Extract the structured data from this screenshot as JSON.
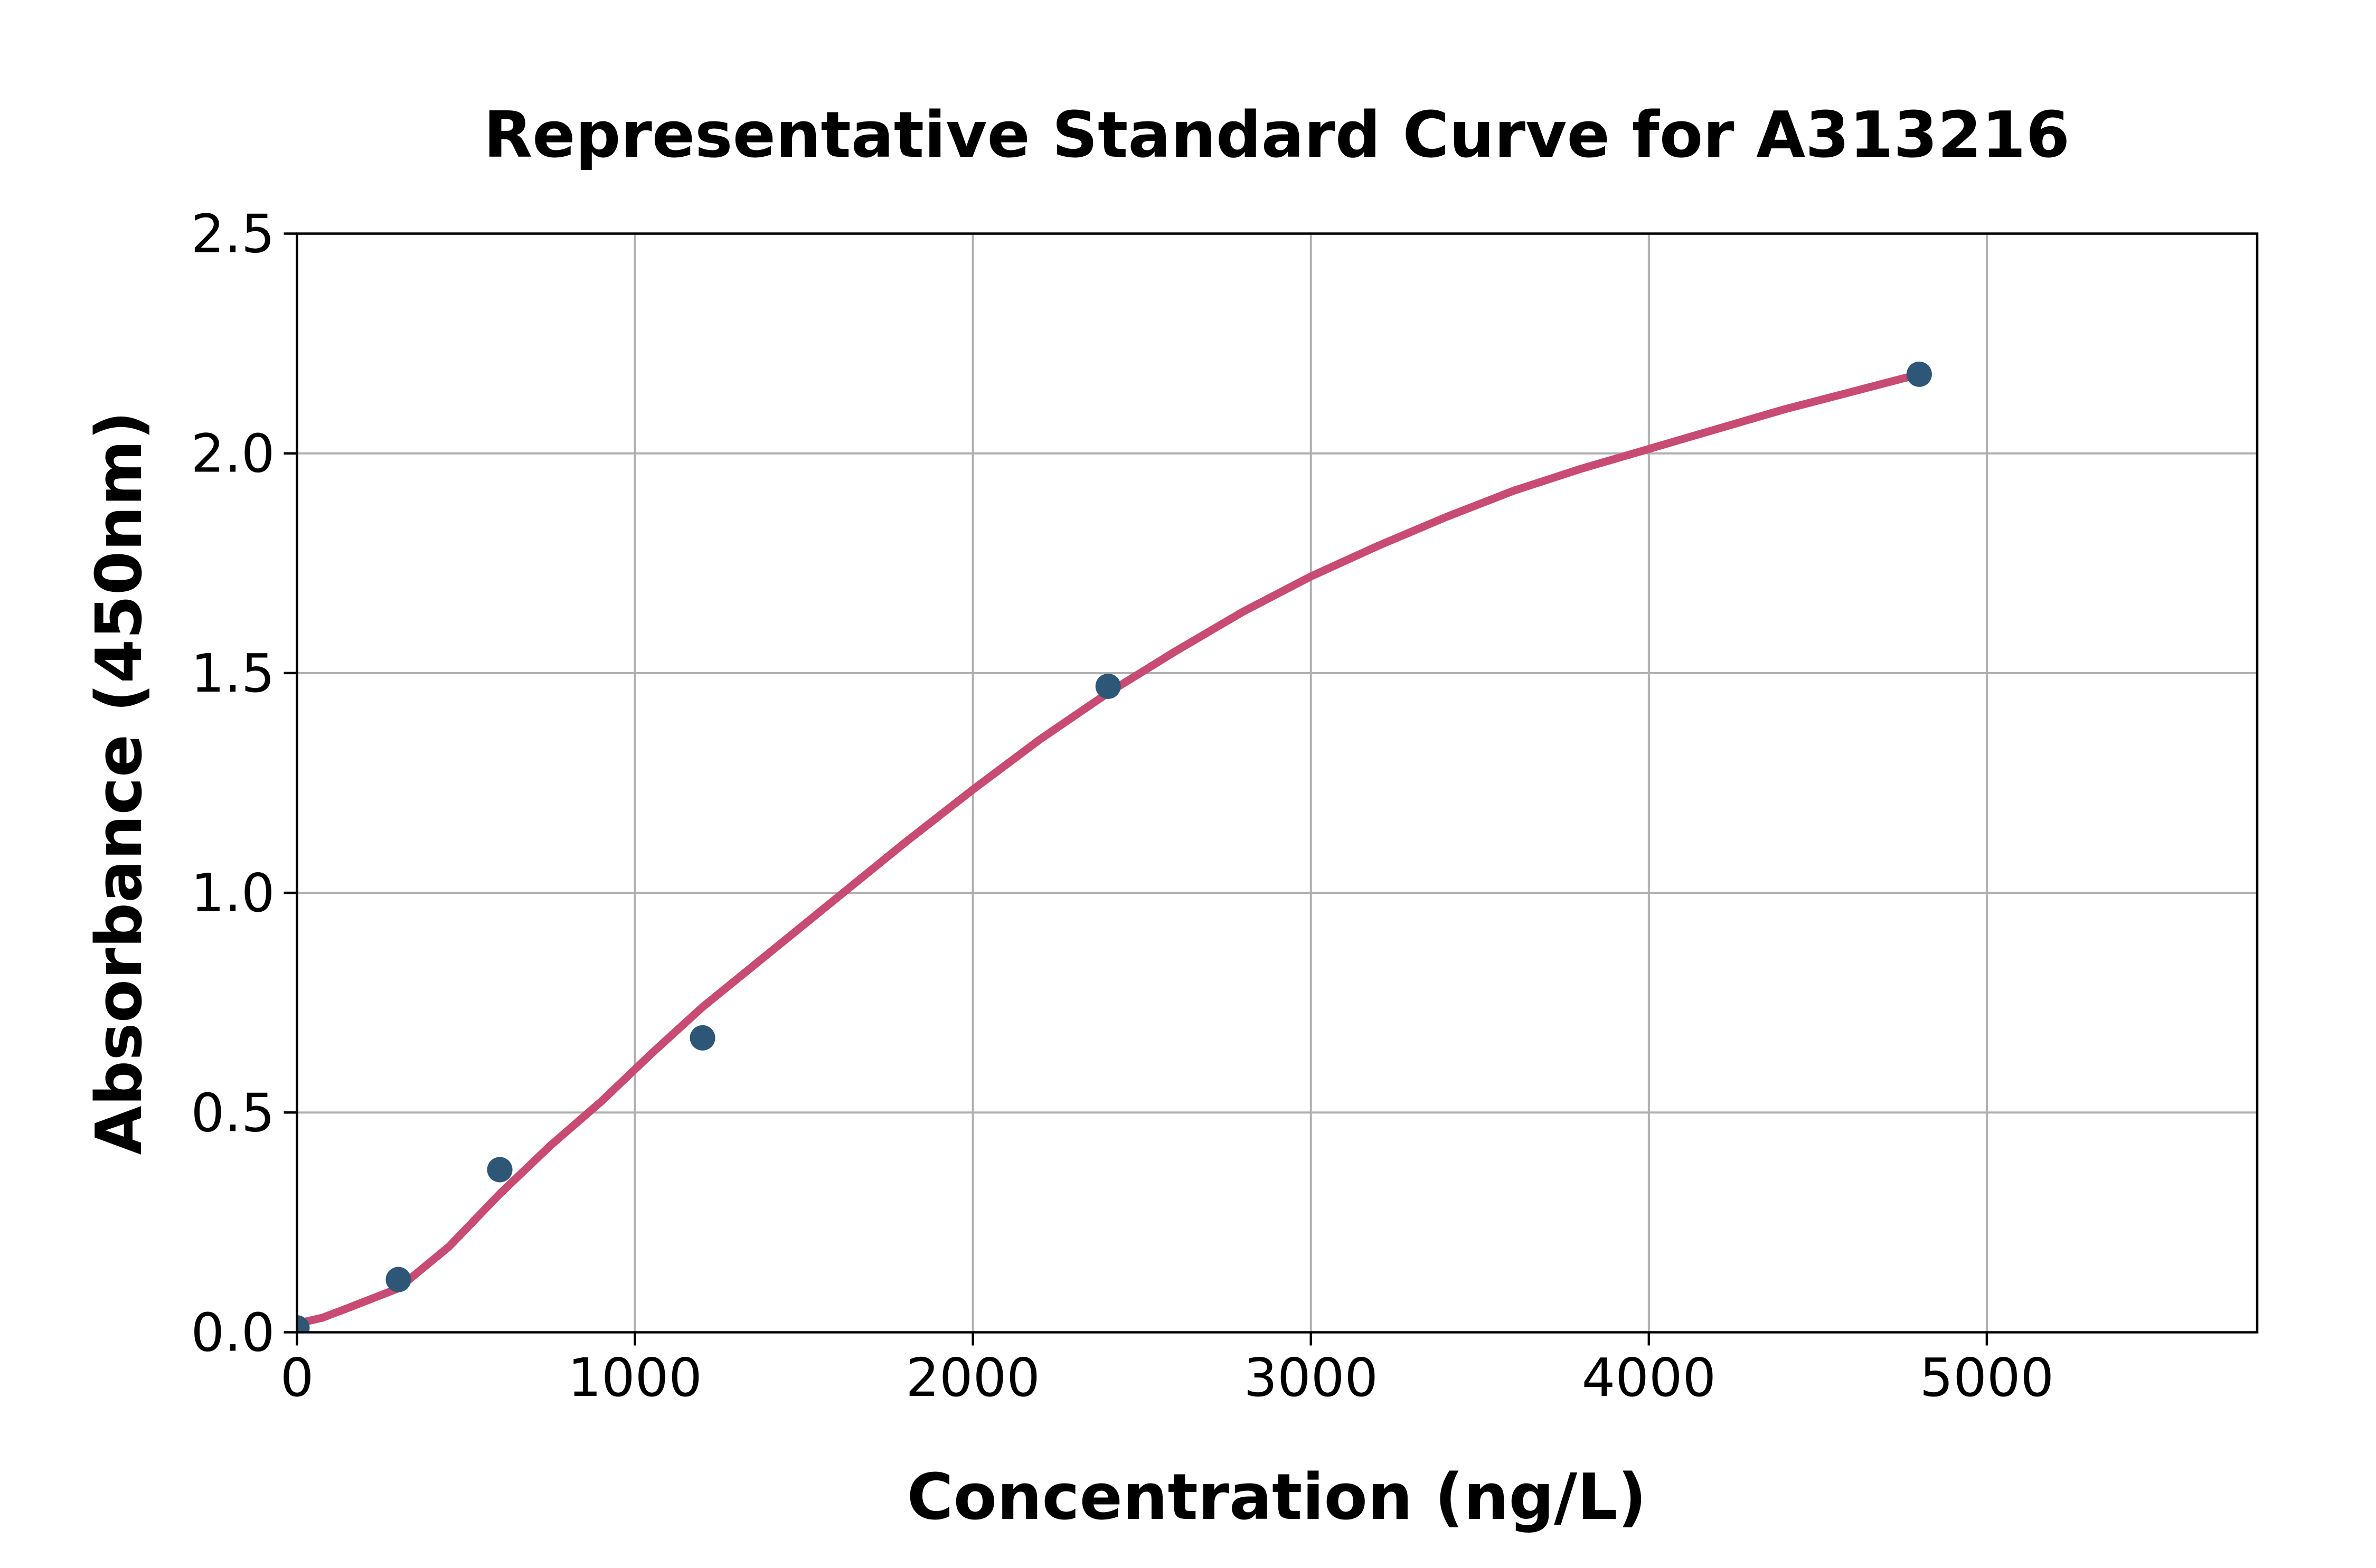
{
  "chart_data": {
    "type": "scatter",
    "title": "Representative Standard Curve for A313216",
    "xlabel": "Concentration (ng/L)",
    "ylabel": "Absorbance (450nm)",
    "xlim": [
      0,
      5800
    ],
    "ylim": [
      0,
      2.5
    ],
    "x_ticks": [
      0,
      1000,
      2000,
      3000,
      4000,
      5000
    ],
    "x_tick_labels": [
      "0",
      "1000",
      "2000",
      "3000",
      "4000",
      "5000"
    ],
    "y_ticks": [
      0.0,
      0.5,
      1.0,
      1.5,
      2.0,
      2.5
    ],
    "y_tick_labels": [
      "0.0",
      "0.5",
      "1.0",
      "1.5",
      "2.0",
      "2.5"
    ],
    "grid": true,
    "legend": "none",
    "series": [
      {
        "name": "standards",
        "type": "scatter",
        "x": [
          0,
          300,
          600,
          1200,
          2400,
          4800
        ],
        "y": [
          0.01,
          0.12,
          0.37,
          0.67,
          1.47,
          2.18
        ]
      },
      {
        "name": "4pl-fit-curve",
        "type": "line",
        "x": [
          0,
          75,
          150,
          300,
          450,
          600,
          750,
          900,
          1050,
          1200,
          1400,
          1600,
          1800,
          2000,
          2200,
          2400,
          2600,
          2800,
          3000,
          3200,
          3400,
          3600,
          3800,
          4000,
          4200,
          4400,
          4600,
          4800
        ],
        "y": [
          0.02,
          0.033,
          0.055,
          0.1,
          0.195,
          0.315,
          0.425,
          0.525,
          0.635,
          0.74,
          0.865,
          0.99,
          1.115,
          1.235,
          1.35,
          1.455,
          1.55,
          1.64,
          1.72,
          1.79,
          1.855,
          1.915,
          1.965,
          2.01,
          2.055,
          2.1,
          2.14,
          2.18
        ]
      }
    ],
    "colors": {
      "point": "#2e5677",
      "curve": "#c74b72",
      "grid": "#b0b0b0",
      "axis": "#000000",
      "background": "#ffffff"
    }
  }
}
